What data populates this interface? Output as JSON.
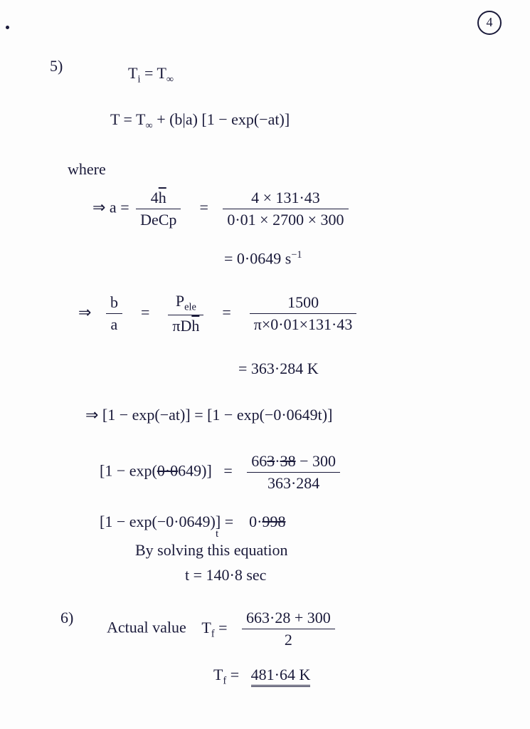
{
  "page_number": "4",
  "problem5": {
    "label": "5)",
    "eq1": "T<span class='sub'>i</span> = T<span class='sub'>∞</span>",
    "eq2": "T = T<span class='sub'>∞</span> + (b|a) [1 − exp(−at)]",
    "where": "where",
    "a_lhs": "⇒ a =",
    "a_frac1_num": "4<span class='overline'>h</span>",
    "a_frac1_den": "DeCp",
    "a_mid": "=",
    "a_frac2_num": "4 × 131·43",
    "a_frac2_den": "0·01 × 2700 × 300",
    "a_result": "= 0·0649 s<span class='sup'>−1</span>",
    "b_lhs": "⇒",
    "b_frac1_num": "b",
    "b_frac1_den": "a",
    "b_eq1": "=",
    "b_frac2_num": "P<span class='sub'>ele</span>",
    "b_frac2_den": "πD<span class='overline'>h</span>",
    "b_eq2": "=",
    "b_frac3_num": "1500",
    "b_frac3_den": "π×0·01×131·43",
    "b_result": "= 363·284 K",
    "c_eq": "⇒ [1 − exp(−at)] = [1 − exp(−0·0649t)]",
    "d_lhs": "[1 − exp(<span class='strike'>0·0</span>649)]",
    "d_eq": "=",
    "d_num": "66<span class='strike'>3</span>·<span class='strike'>38</span> − 300",
    "d_den": "363·284",
    "e_lhs": "[1 − exp(−0·0649)] =",
    "e_rhs": "0·<span class='strike'>998</span>",
    "e_sub": "t",
    "solving": "By solving this equation",
    "t_result": "t  =     140·8 sec"
  },
  "problem6": {
    "label": "6)",
    "heading": "Actual value",
    "tf_lhs": "T<span class='sub'>f</span>  =",
    "tf_num": "663·28 + 300",
    "tf_den": "2",
    "tf2_lhs": "T<span class='sub'>f</span>  =",
    "tf2_rhs": "481·64 K"
  }
}
